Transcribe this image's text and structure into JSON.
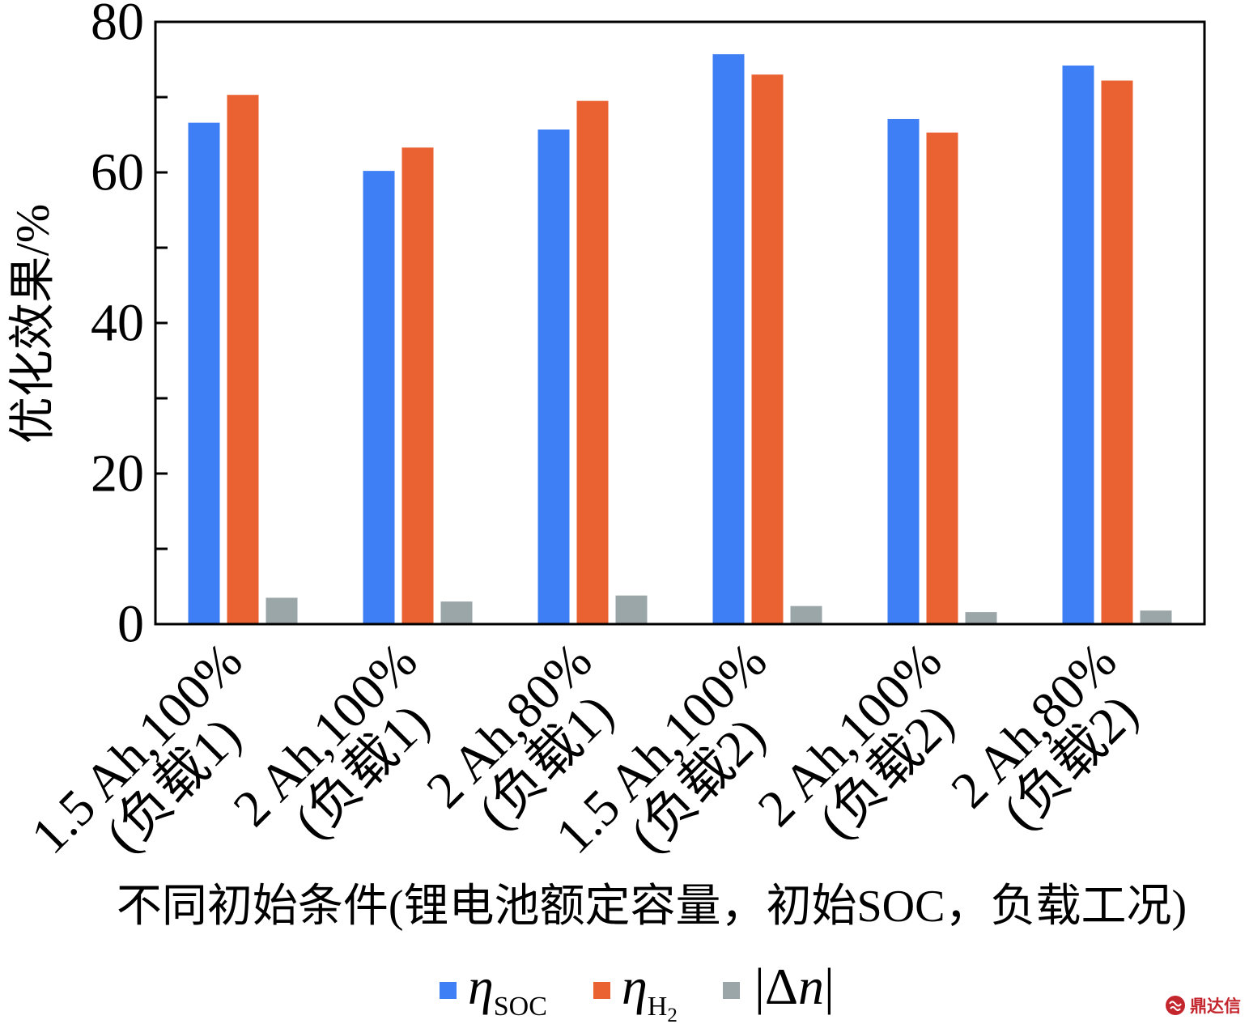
{
  "chart_data": {
    "type": "bar",
    "categories": [
      [
        "1.5 Ah,100%",
        "(负载1)"
      ],
      [
        "2 Ah,100%",
        "(负载1)"
      ],
      [
        "2 Ah,80%",
        "(负载1)"
      ],
      [
        "1.5 Ah,100%",
        "(负载2)"
      ],
      [
        "2 Ah,100%",
        "(负载2)"
      ],
      [
        "2 Ah,80%",
        "(负载2)"
      ]
    ],
    "series": [
      {
        "symbol": "η",
        "sub": "SOC",
        "color": "#3f7ff5",
        "values": [
          66.6,
          60.2,
          65.7,
          75.7,
          67.1,
          74.2
        ]
      },
      {
        "symbol": "η",
        "sub": "H",
        "sub2": "2",
        "color": "#ea6231",
        "values": [
          70.3,
          63.3,
          69.5,
          73.0,
          65.3,
          72.2
        ]
      },
      {
        "symbol": "|Δn|",
        "color": "#9ba6a8",
        "values": [
          3.5,
          3.0,
          3.8,
          2.4,
          1.6,
          1.8
        ]
      }
    ],
    "xlabel": "不同初始条件(锂电池额定容量，初始SOC，负载工况)",
    "ylabel": "优化效果/%",
    "ylim": [
      0,
      80
    ],
    "yticks": [
      0,
      20,
      40,
      60,
      80
    ],
    "yminor_ticks": [
      10,
      30,
      50,
      70
    ],
    "grid": false,
    "legend_position": "bottom"
  },
  "watermark": {
    "text": "鼎达信",
    "color": "#c4262e"
  }
}
